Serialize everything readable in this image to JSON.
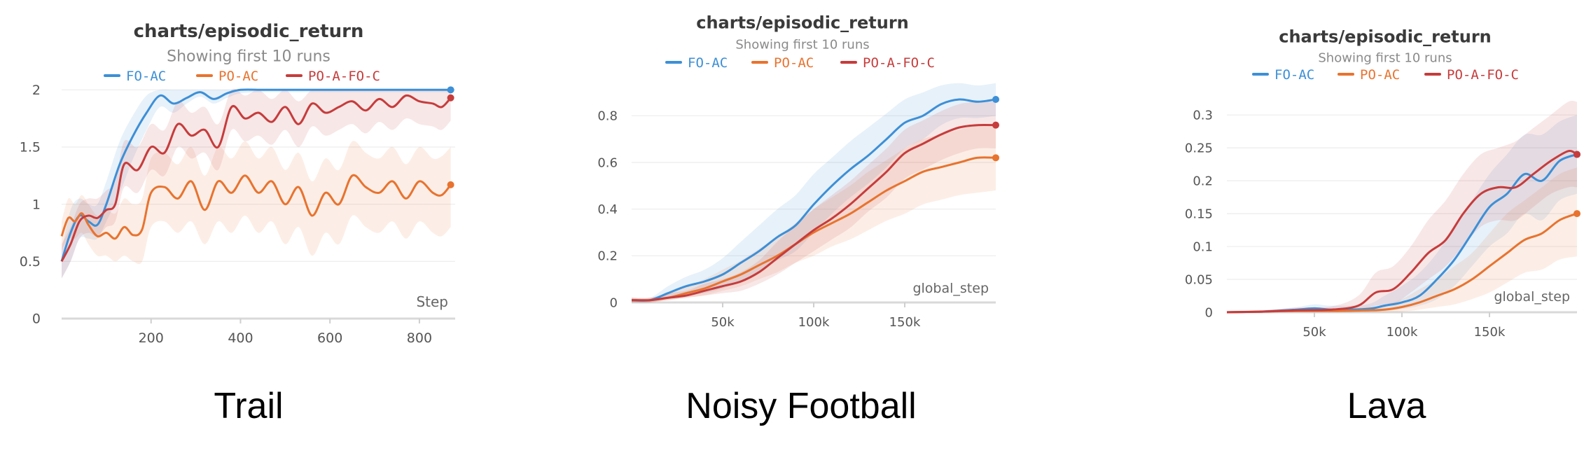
{
  "colors": {
    "FO-AC": "#3d8fd6",
    "PO-AC": "#e8732f",
    "PO-A-FO-C": "#c63c3c"
  },
  "chart_data": [
    {
      "type": "line",
      "title": "charts/episodic_return",
      "subtitle": "Showing first 10 runs",
      "caption": "Trail",
      "xlabel": "Step",
      "ylabel": "",
      "xlim": [
        0,
        880
      ],
      "ylim": [
        0,
        2.1
      ],
      "xticks": [
        200,
        400,
        600,
        800
      ],
      "xtick_labels": [
        "200",
        "400",
        "600",
        "800"
      ],
      "yticks": [
        0,
        0.5,
        1,
        1.5,
        2
      ],
      "ytick_labels": [
        "0",
        "0.5",
        "1",
        "1.5",
        "2"
      ],
      "grid": true,
      "legend": "top-center",
      "series": [
        {
          "name": "FO-AC",
          "x": [
            0,
            20,
            40,
            60,
            80,
            100,
            130,
            160,
            190,
            220,
            250,
            280,
            310,
            340,
            370,
            400,
            450,
            500,
            550,
            600,
            650,
            700,
            750,
            800,
            850,
            870
          ],
          "y": [
            0.5,
            0.75,
            0.9,
            0.85,
            0.82,
            1.0,
            1.35,
            1.6,
            1.8,
            1.95,
            1.88,
            1.93,
            1.98,
            1.92,
            1.97,
            2.0,
            2.0,
            2.0,
            2.0,
            2.0,
            2.0,
            2.0,
            2.0,
            2.0,
            2.0,
            2.0
          ],
          "lower": [
            0.35,
            0.5,
            0.7,
            0.7,
            0.7,
            0.85,
            1.1,
            1.4,
            1.65,
            1.85,
            1.8,
            1.88,
            1.94,
            1.88,
            1.93,
            1.97,
            1.98,
            1.98,
            1.98,
            1.98,
            1.98,
            1.98,
            1.98,
            1.98,
            1.98,
            1.98
          ],
          "upper": [
            0.6,
            0.95,
            1.05,
            1.0,
            1.0,
            1.2,
            1.55,
            1.78,
            1.95,
            2.0,
            2.0,
            2.0,
            2.0,
            2.0,
            2.0,
            2.0,
            2.0,
            2.0,
            2.0,
            2.0,
            2.0,
            2.0,
            2.0,
            2.0,
            2.0,
            2.0
          ]
        },
        {
          "name": "PO-AC",
          "x": [
            0,
            15,
            30,
            45,
            60,
            80,
            100,
            120,
            140,
            160,
            180,
            200,
            230,
            260,
            290,
            320,
            350,
            380,
            410,
            440,
            470,
            500,
            530,
            560,
            590,
            620,
            650,
            680,
            710,
            740,
            770,
            800,
            830,
            850,
            870
          ],
          "y": [
            0.72,
            0.88,
            0.85,
            0.92,
            0.82,
            0.72,
            0.75,
            0.7,
            0.8,
            0.73,
            0.78,
            1.1,
            1.15,
            1.05,
            1.2,
            0.95,
            1.2,
            1.1,
            1.25,
            1.1,
            1.2,
            1.0,
            1.15,
            0.9,
            1.1,
            1.0,
            1.25,
            1.15,
            1.1,
            1.2,
            1.05,
            1.2,
            1.1,
            1.08,
            1.17
          ],
          "lower": [
            0.6,
            0.7,
            0.7,
            0.75,
            0.65,
            0.55,
            0.55,
            0.5,
            0.55,
            0.5,
            0.5,
            0.8,
            0.85,
            0.75,
            0.85,
            0.65,
            0.85,
            0.75,
            0.9,
            0.75,
            0.85,
            0.65,
            0.8,
            0.55,
            0.75,
            0.65,
            0.9,
            0.8,
            0.75,
            0.85,
            0.7,
            0.85,
            0.75,
            0.72,
            0.8
          ],
          "upper": [
            0.85,
            1.05,
            1.0,
            1.08,
            1.0,
            0.9,
            0.95,
            0.92,
            1.05,
            1.0,
            1.05,
            1.4,
            1.45,
            1.35,
            1.5,
            1.25,
            1.5,
            1.4,
            1.55,
            1.4,
            1.5,
            1.3,
            1.45,
            1.2,
            1.4,
            1.3,
            1.55,
            1.45,
            1.4,
            1.5,
            1.35,
            1.5,
            1.4,
            1.42,
            1.5
          ]
        },
        {
          "name": "PO-A-FO-C",
          "x": [
            0,
            20,
            40,
            60,
            80,
            100,
            120,
            140,
            170,
            200,
            230,
            260,
            290,
            320,
            350,
            380,
            410,
            440,
            470,
            500,
            530,
            560,
            590,
            620,
            650,
            680,
            710,
            740,
            770,
            800,
            830,
            850,
            870
          ],
          "y": [
            0.5,
            0.65,
            0.85,
            0.9,
            0.88,
            0.95,
            1.0,
            1.35,
            1.3,
            1.5,
            1.45,
            1.7,
            1.6,
            1.65,
            1.5,
            1.85,
            1.75,
            1.8,
            1.72,
            1.85,
            1.7,
            1.88,
            1.8,
            1.85,
            1.9,
            1.82,
            1.92,
            1.85,
            1.95,
            1.9,
            1.88,
            1.85,
            1.93
          ],
          "lower": [
            0.35,
            0.5,
            0.7,
            0.75,
            0.72,
            0.8,
            0.85,
            1.15,
            1.1,
            1.3,
            1.25,
            1.5,
            1.4,
            1.45,
            1.3,
            1.65,
            1.55,
            1.6,
            1.52,
            1.65,
            1.5,
            1.68,
            1.6,
            1.65,
            1.7,
            1.62,
            1.72,
            1.65,
            1.75,
            1.7,
            1.68,
            1.65,
            1.73
          ],
          "upper": [
            0.65,
            0.8,
            1.0,
            1.05,
            1.05,
            1.12,
            1.2,
            1.55,
            1.5,
            1.7,
            1.65,
            1.9,
            1.8,
            1.85,
            1.7,
            2.0,
            1.95,
            2.0,
            1.92,
            2.0,
            1.9,
            2.0,
            2.0,
            2.0,
            2.0,
            2.0,
            2.0,
            2.0,
            2.0,
            2.0,
            2.0,
            2.0,
            2.0
          ]
        }
      ]
    },
    {
      "type": "line",
      "title": "charts/episodic_return",
      "subtitle": "Showing first 10 runs",
      "caption": "Noisy Football",
      "xlabel": "global_step",
      "ylabel": "",
      "xlim": [
        0,
        200000
      ],
      "ylim": [
        0,
        0.96
      ],
      "xticks": [
        50000,
        100000,
        150000
      ],
      "xtick_labels": [
        "50k",
        "100k",
        "150k"
      ],
      "yticks": [
        0,
        0.2,
        0.4,
        0.6,
        0.8
      ],
      "ytick_labels": [
        "0",
        "0.2",
        "0.4",
        "0.6",
        "0.8"
      ],
      "grid": true,
      "legend": "top-center",
      "series": [
        {
          "name": "FO-AC",
          "x": [
            0,
            10000,
            20000,
            30000,
            40000,
            50000,
            60000,
            70000,
            80000,
            90000,
            100000,
            110000,
            120000,
            130000,
            140000,
            150000,
            160000,
            170000,
            180000,
            190000,
            200000
          ],
          "y": [
            0.01,
            0.01,
            0.04,
            0.07,
            0.09,
            0.12,
            0.17,
            0.22,
            0.28,
            0.33,
            0.42,
            0.5,
            0.57,
            0.63,
            0.7,
            0.77,
            0.8,
            0.85,
            0.87,
            0.86,
            0.87
          ],
          "lower": [
            0.0,
            0.0,
            0.02,
            0.03,
            0.04,
            0.06,
            0.09,
            0.13,
            0.18,
            0.22,
            0.3,
            0.38,
            0.45,
            0.51,
            0.58,
            0.66,
            0.7,
            0.76,
            0.79,
            0.79,
            0.8
          ],
          "upper": [
            0.02,
            0.02,
            0.07,
            0.11,
            0.14,
            0.19,
            0.26,
            0.33,
            0.4,
            0.46,
            0.55,
            0.62,
            0.69,
            0.75,
            0.81,
            0.87,
            0.9,
            0.93,
            0.94,
            0.93,
            0.94
          ]
        },
        {
          "name": "PO-AC",
          "x": [
            0,
            10000,
            20000,
            30000,
            40000,
            50000,
            60000,
            70000,
            80000,
            90000,
            100000,
            110000,
            120000,
            130000,
            140000,
            150000,
            160000,
            170000,
            180000,
            190000,
            200000
          ],
          "y": [
            0.01,
            0.01,
            0.02,
            0.04,
            0.06,
            0.09,
            0.12,
            0.16,
            0.2,
            0.25,
            0.3,
            0.34,
            0.38,
            0.43,
            0.48,
            0.52,
            0.56,
            0.58,
            0.6,
            0.62,
            0.62
          ],
          "lower": [
            0.0,
            0.0,
            0.01,
            0.02,
            0.03,
            0.05,
            0.07,
            0.1,
            0.13,
            0.17,
            0.2,
            0.24,
            0.27,
            0.31,
            0.35,
            0.38,
            0.42,
            0.44,
            0.46,
            0.47,
            0.48
          ],
          "upper": [
            0.02,
            0.02,
            0.04,
            0.07,
            0.1,
            0.14,
            0.18,
            0.23,
            0.28,
            0.34,
            0.4,
            0.45,
            0.5,
            0.56,
            0.61,
            0.66,
            0.7,
            0.72,
            0.74,
            0.76,
            0.76
          ]
        },
        {
          "name": "PO-A-FO-C",
          "x": [
            0,
            10000,
            20000,
            30000,
            40000,
            50000,
            60000,
            70000,
            80000,
            90000,
            100000,
            110000,
            120000,
            130000,
            140000,
            150000,
            160000,
            170000,
            180000,
            190000,
            200000
          ],
          "y": [
            0.01,
            0.01,
            0.02,
            0.03,
            0.05,
            0.07,
            0.09,
            0.13,
            0.19,
            0.25,
            0.31,
            0.36,
            0.42,
            0.49,
            0.56,
            0.64,
            0.68,
            0.72,
            0.75,
            0.76,
            0.76
          ],
          "lower": [
            0.0,
            0.0,
            0.01,
            0.02,
            0.03,
            0.04,
            0.05,
            0.08,
            0.12,
            0.17,
            0.22,
            0.27,
            0.32,
            0.39,
            0.45,
            0.53,
            0.57,
            0.61,
            0.64,
            0.66,
            0.66
          ],
          "upper": [
            0.02,
            0.02,
            0.04,
            0.05,
            0.08,
            0.1,
            0.13,
            0.18,
            0.26,
            0.33,
            0.4,
            0.46,
            0.52,
            0.59,
            0.66,
            0.74,
            0.78,
            0.82,
            0.85,
            0.86,
            0.86
          ]
        }
      ]
    },
    {
      "type": "line",
      "title": "charts/episodic_return",
      "subtitle": "Showing first 10 runs",
      "caption": "Lava",
      "xlabel": "global_step",
      "ylabel": "",
      "xlim": [
        0,
        200000
      ],
      "ylim": [
        0,
        0.33
      ],
      "xticks": [
        50000,
        100000,
        150000
      ],
      "xtick_labels": [
        "50k",
        "100k",
        "150k"
      ],
      "yticks": [
        0,
        0.05,
        0.1,
        0.15,
        0.2,
        0.25,
        0.3
      ],
      "ytick_labels": [
        "0",
        "0.05",
        "0.1",
        "0.15",
        "0.2",
        "0.25",
        "0.3"
      ],
      "grid": true,
      "legend": "top-center",
      "series": [
        {
          "name": "FO-AC",
          "x": [
            0,
            20000,
            40000,
            50000,
            60000,
            80000,
            90000,
            100000,
            110000,
            120000,
            130000,
            140000,
            150000,
            160000,
            170000,
            180000,
            190000,
            200000
          ],
          "y": [
            0.0,
            0.001,
            0.004,
            0.006,
            0.004,
            0.005,
            0.01,
            0.015,
            0.025,
            0.05,
            0.08,
            0.12,
            0.16,
            0.18,
            0.21,
            0.2,
            0.23,
            0.24
          ],
          "lower": [
            0.0,
            0.0,
            0.0,
            0.001,
            0.0,
            0.0,
            0.002,
            0.005,
            0.01,
            0.02,
            0.04,
            0.07,
            0.1,
            0.12,
            0.15,
            0.14,
            0.17,
            0.18
          ],
          "upper": [
            0.002,
            0.003,
            0.008,
            0.012,
            0.01,
            0.012,
            0.025,
            0.04,
            0.06,
            0.09,
            0.13,
            0.17,
            0.21,
            0.24,
            0.27,
            0.27,
            0.29,
            0.3
          ]
        },
        {
          "name": "PO-AC",
          "x": [
            0,
            20000,
            40000,
            60000,
            80000,
            90000,
            100000,
            110000,
            120000,
            130000,
            140000,
            150000,
            160000,
            170000,
            180000,
            190000,
            200000
          ],
          "y": [
            0.0,
            0.001,
            0.002,
            0.002,
            0.003,
            0.004,
            0.008,
            0.015,
            0.025,
            0.035,
            0.05,
            0.07,
            0.09,
            0.11,
            0.12,
            0.14,
            0.15
          ],
          "lower": [
            0.0,
            0.0,
            0.0,
            0.0,
            0.0,
            0.0,
            0.001,
            0.004,
            0.008,
            0.012,
            0.02,
            0.03,
            0.045,
            0.06,
            0.065,
            0.08,
            0.085
          ],
          "upper": [
            0.002,
            0.003,
            0.005,
            0.005,
            0.008,
            0.012,
            0.02,
            0.035,
            0.05,
            0.07,
            0.09,
            0.12,
            0.15,
            0.17,
            0.19,
            0.21,
            0.22
          ]
        },
        {
          "name": "PO-A-FO-C",
          "x": [
            0,
            20000,
            40000,
            60000,
            75000,
            85000,
            95000,
            105000,
            115000,
            125000,
            135000,
            145000,
            155000,
            165000,
            175000,
            185000,
            195000,
            200000
          ],
          "y": [
            0.0,
            0.001,
            0.003,
            0.004,
            0.01,
            0.03,
            0.035,
            0.06,
            0.09,
            0.11,
            0.15,
            0.18,
            0.19,
            0.19,
            0.21,
            0.23,
            0.245,
            0.24
          ],
          "lower": [
            0.0,
            0.0,
            0.0,
            0.0,
            0.002,
            0.01,
            0.012,
            0.03,
            0.05,
            0.07,
            0.1,
            0.13,
            0.14,
            0.14,
            0.16,
            0.18,
            0.19,
            0.19
          ],
          "upper": [
            0.002,
            0.003,
            0.007,
            0.009,
            0.025,
            0.06,
            0.07,
            0.1,
            0.14,
            0.17,
            0.21,
            0.24,
            0.25,
            0.26,
            0.28,
            0.3,
            0.32,
            0.32
          ]
        }
      ]
    }
  ]
}
